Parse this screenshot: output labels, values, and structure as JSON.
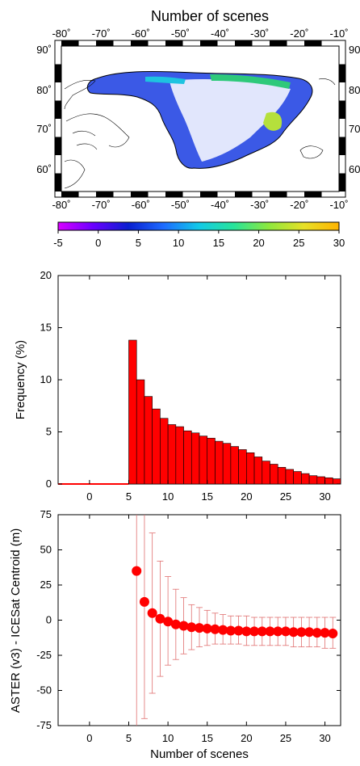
{
  "map": {
    "title": "Number of scenes",
    "lon_ticks": [
      "-80˚",
      "-70˚",
      "-60˚",
      "-50˚",
      "-40˚",
      "-30˚",
      "-20˚",
      "-10˚"
    ],
    "lat_ticks": [
      "60˚",
      "70˚",
      "80˚",
      "90˚"
    ],
    "colorbar": {
      "ticks": [
        "-5",
        "0",
        "5",
        "10",
        "15",
        "20",
        "25",
        "30"
      ],
      "range": [
        -5,
        30
      ],
      "colors": [
        "#d800ff",
        "#6a00ff",
        "#0a1fd0",
        "#1d6bff",
        "#12c9e8",
        "#27e49a",
        "#8ee83d",
        "#e7e027",
        "#ffb300"
      ]
    }
  },
  "chart_data": [
    {
      "type": "bar",
      "ylabel": "Frequency (%)",
      "xlim": [
        -4,
        32
      ],
      "ylim": [
        0,
        20
      ],
      "xticks": [
        "0",
        "5",
        "10",
        "15",
        "20",
        "25",
        "30"
      ],
      "yticks": [
        "0",
        "5",
        "10",
        "15",
        "20"
      ],
      "bar_color": "#ff0000",
      "categories": [
        5,
        6,
        7,
        8,
        9,
        10,
        11,
        12,
        13,
        14,
        15,
        16,
        17,
        18,
        19,
        20,
        21,
        22,
        23,
        24,
        25,
        26,
        27,
        28,
        29,
        30,
        31
      ],
      "values": [
        13.8,
        10.0,
        8.4,
        7.2,
        6.3,
        5.7,
        5.5,
        5.1,
        4.9,
        4.6,
        4.4,
        4.1,
        3.9,
        3.6,
        3.3,
        3.0,
        2.6,
        2.2,
        1.9,
        1.6,
        1.4,
        1.2,
        1.0,
        0.8,
        0.7,
        0.6,
        0.5
      ]
    },
    {
      "type": "scatter",
      "xlabel": "Number of scenes",
      "ylabel": "ASTER (v3) - ICESat Centroid (m)",
      "xlim": [
        -4,
        32
      ],
      "ylim": [
        -75,
        75
      ],
      "xticks": [
        "0",
        "5",
        "10",
        "15",
        "20",
        "25",
        "30"
      ],
      "yticks": [
        "-75",
        "-50",
        "-25",
        "0",
        "25",
        "50",
        "75"
      ],
      "marker_color": "#ff0000",
      "x": [
        6,
        7,
        8,
        9,
        10,
        11,
        12,
        13,
        14,
        15,
        16,
        17,
        18,
        19,
        20,
        21,
        22,
        23,
        24,
        25,
        26,
        27,
        28,
        29,
        30,
        31
      ],
      "y": [
        35,
        13,
        5,
        1,
        -1,
        -3,
        -4,
        -5,
        -5.5,
        -6,
        -6.5,
        -7,
        -7.5,
        -7.5,
        -8,
        -8,
        -8,
        -8,
        -8,
        -8,
        -8.5,
        -8.5,
        -8.5,
        -9,
        -9,
        -9.5
      ],
      "err_low": [
        -90,
        -70,
        -52,
        -40,
        -32,
        -28,
        -24,
        -21,
        -19,
        -18,
        -17,
        -17,
        -17,
        -17,
        -18,
        -18,
        -18,
        -18,
        -18,
        -18,
        -19,
        -19,
        -19,
        -19,
        -20,
        -20
      ],
      "err_high": [
        90,
        76,
        62,
        42,
        31,
        22,
        16,
        11,
        9,
        7,
        5,
        4,
        3,
        3,
        3,
        2,
        2,
        2,
        2,
        2,
        2,
        2,
        2,
        2,
        2,
        2
      ]
    }
  ]
}
